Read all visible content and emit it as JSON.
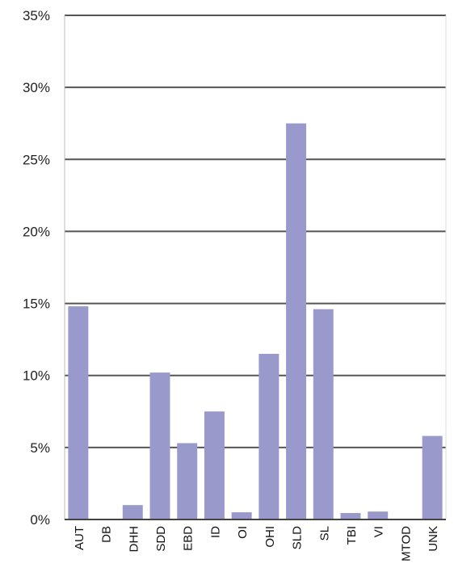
{
  "chart_data": {
    "type": "bar",
    "title": "",
    "xlabel": "",
    "ylabel": "",
    "categories": [
      "AUT",
      "DB",
      "DHH",
      "SDD",
      "EBD",
      "ID",
      "OI",
      "OHI",
      "SLD",
      "SL",
      "TBI",
      "VI",
      "MTOD",
      "UNK"
    ],
    "values": [
      14.8,
      0.05,
      1.0,
      10.2,
      5.3,
      7.5,
      0.5,
      11.5,
      27.5,
      14.6,
      0.45,
      0.55,
      0.05,
      5.8
    ],
    "yticks": [
      0,
      5,
      10,
      15,
      20,
      25,
      30,
      35
    ],
    "ytick_labels": [
      "0%",
      "5%",
      "10%",
      "15%",
      "20%",
      "25%",
      "30%",
      "35%"
    ],
    "ylim": [
      0,
      35
    ],
    "grid": true,
    "legend": "none",
    "colors": {
      "bar": "#9999cc",
      "gridline": "#555555",
      "axis": "#444444"
    }
  }
}
